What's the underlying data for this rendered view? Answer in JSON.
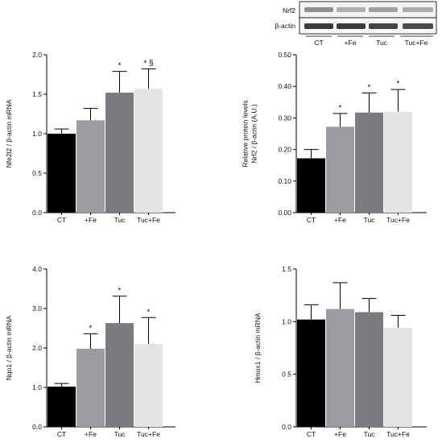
{
  "colors": {
    "bar_fills": [
      "#000000",
      "#9a9ca2",
      "#7a7b7e",
      "#e4e4e4"
    ],
    "axis": "#000000"
  },
  "blot": {
    "row_labels": [
      "Nrf2",
      "β-actin"
    ],
    "lane_labels": [
      "CT",
      "+Fe",
      "Tuc",
      "Tuc+Fe"
    ]
  },
  "chart_data": [
    {
      "type": "bar",
      "panel": "top-left",
      "categories": [
        "CT",
        "+Fe",
        "Tuc",
        "Tuc+Fe"
      ],
      "values": [
        1.0,
        1.17,
        1.52,
        1.57
      ],
      "errors": [
        0.06,
        0.15,
        0.27,
        0.25
      ],
      "annotations": [
        "",
        "",
        "*",
        "* §"
      ],
      "ylabel": [
        "Nfe2l2 / β-actin mRNA"
      ],
      "ylim": [
        0,
        2.0
      ],
      "yticks": [
        "0.0",
        "0.5",
        "1.0",
        "1.5",
        "2.0"
      ],
      "grid": false
    },
    {
      "type": "bar",
      "panel": "top-right",
      "categories": [
        "CT",
        "+Fe",
        "Tuc",
        "Tuc+Fe"
      ],
      "values": [
        0.172,
        0.272,
        0.317,
        0.32
      ],
      "errors": [
        0.028,
        0.042,
        0.062,
        0.07
      ],
      "annotations": [
        "",
        "*",
        "*",
        "*"
      ],
      "ylabel": [
        "Relative protein levels",
        "Nrf2 / β-actin (A.U.)"
      ],
      "ylim": [
        0,
        0.5
      ],
      "yticks": [
        "0.00",
        "0.10",
        "0.20",
        "0.30",
        "0.40",
        "0.50"
      ],
      "grid": false
    },
    {
      "type": "bar",
      "panel": "bottom-left",
      "categories": [
        "CT",
        "+Fe",
        "Tuc",
        "Tuc+Fe"
      ],
      "values": [
        1.02,
        1.98,
        2.63,
        2.1
      ],
      "errors": [
        0.08,
        0.38,
        0.68,
        0.67
      ],
      "annotations": [
        "",
        "*",
        "*",
        "*"
      ],
      "ylabel": [
        "Nqo1 / β-actin mRNA"
      ],
      "ylim": [
        0,
        4.0
      ],
      "yticks": [
        "0.0",
        "1.0",
        "2.0",
        "3.0",
        "4.0"
      ],
      "grid": false
    },
    {
      "type": "bar",
      "panel": "bottom-right",
      "categories": [
        "CT",
        "+Fe",
        "Tuc",
        "Tuc+Fe"
      ],
      "values": [
        1.02,
        1.12,
        1.09,
        0.94
      ],
      "errors": [
        0.14,
        0.25,
        0.13,
        0.12
      ],
      "annotations": [
        "",
        "",
        "",
        ""
      ],
      "ylabel": [
        "Hmox1 / β-actin mRNA"
      ],
      "ylim": [
        0,
        1.5
      ],
      "yticks": [
        "0.0",
        "0.5",
        "1.0",
        "1.5"
      ],
      "grid": false
    }
  ]
}
